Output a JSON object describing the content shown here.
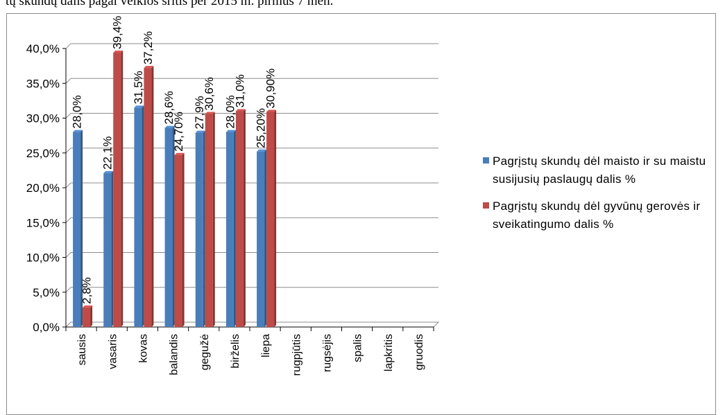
{
  "top_text": "tų skundų dalis pagal veiklos sritis per 2015 m. pirmus 7 mėn.",
  "colors": {
    "series1": "#4a7ebb",
    "series2": "#be4b48",
    "grid": "#8c8c8c",
    "axis": "#000000"
  },
  "chart_data": {
    "type": "bar",
    "categories": [
      "sausis",
      "vasaris",
      "kovas",
      "balandis",
      "gegužė",
      "birželis",
      "liepa",
      "rugpjūtis",
      "rugsėjis",
      "spalis",
      "lapkritis",
      "gruodis"
    ],
    "ylim": [
      0,
      40
    ],
    "ytick_labels": [
      "0,0%",
      "5,0%",
      "10,0%",
      "15,0%",
      "20,0%",
      "25,0%",
      "30,0%",
      "35,0%",
      "40,0%"
    ],
    "grid": true,
    "legend_position": "right",
    "series": [
      {
        "name": "Pagrįstų skundų dėl maisto ir su maistu susijusių paslaugų dalis %",
        "values": [
          28.0,
          22.1,
          31.5,
          28.6,
          27.9,
          28.0,
          25.2,
          null,
          null,
          null,
          null,
          null
        ],
        "labels": [
          "28,0%",
          "22,1%",
          "31,5%",
          "28,6%",
          "27,9%",
          "28,0%",
          "25,20%",
          null,
          null,
          null,
          null,
          null
        ]
      },
      {
        "name": "Pagrįstų skundų dėl gyvūnų gerovės ir sveikatingumo dalis %",
        "values": [
          2.8,
          39.4,
          37.2,
          24.7,
          30.6,
          31.0,
          30.9,
          null,
          null,
          null,
          null,
          null
        ],
        "labels": [
          "2,8%",
          "39,4%",
          "37,2%",
          "24,70%",
          "30,6%",
          "31,0%",
          "30,90%",
          null,
          null,
          null,
          null,
          null
        ]
      }
    ]
  }
}
